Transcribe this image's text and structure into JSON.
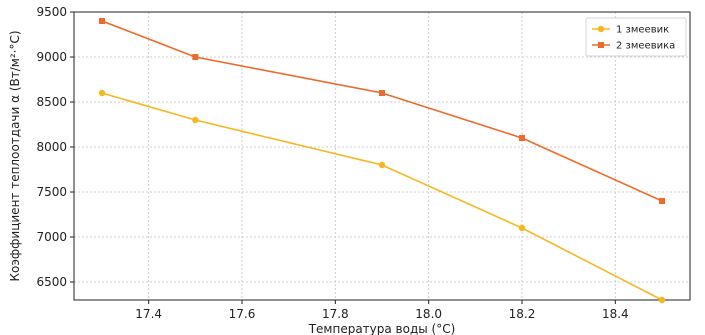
{
  "chart_data": {
    "type": "line",
    "xlabel": "Температура воды (°C)",
    "ylabel": "Коэффициент теплоотдачи α (Вт/м²·°C)",
    "xlim": [
      17.24,
      18.56
    ],
    "ylim": [
      6300,
      9500
    ],
    "xticks": [
      "17.4",
      "17.6",
      "17.8",
      "18.0",
      "18.2",
      "18.4"
    ],
    "yticks": [
      "6500",
      "7000",
      "7500",
      "8000",
      "8500",
      "9000",
      "9500"
    ],
    "grid": true,
    "legend_position": "top-right",
    "series": [
      {
        "name": "1 змеевик",
        "color": "#f6b820",
        "marker": "circle",
        "x": [
          17.3,
          17.5,
          17.9,
          18.2,
          18.5
        ],
        "y": [
          8600,
          8300,
          7800,
          7100,
          6300
        ]
      },
      {
        "name": "2 змеевика",
        "color": "#ec6b2c",
        "marker": "square",
        "x": [
          17.3,
          17.5,
          17.9,
          18.2,
          18.5
        ],
        "y": [
          9400,
          9000,
          8600,
          8100,
          7400
        ]
      }
    ]
  }
}
